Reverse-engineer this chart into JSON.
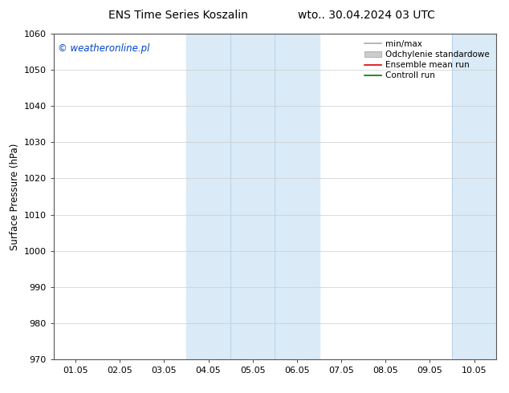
{
  "title_left": "ENS Time Series Koszalin",
  "title_right": "wto.. 30.04.2024 03 UTC",
  "ylabel": "Surface Pressure (hPa)",
  "ylim": [
    970,
    1060
  ],
  "ytick_step": 10,
  "xtick_labels": [
    "01.05",
    "02.05",
    "03.05",
    "04.05",
    "05.05",
    "06.05",
    "07.05",
    "08.05",
    "09.05",
    "10.05"
  ],
  "shaded_bands": [
    {
      "start": "2024-05-04",
      "end": "2024-05-06"
    },
    {
      "start": "2024-05-09",
      "end": "2024-05-10"
    }
  ],
  "band_color": "#daeaf7",
  "band_color2": "#e8f3fb",
  "watermark": "© weatheronline.pl",
  "watermark_color": "#0044cc",
  "legend_items": [
    {
      "label": "min/max",
      "color": "#aaaaaa",
      "lw": 1.2,
      "type": "line"
    },
    {
      "label": "Odchylenie standardowe",
      "color": "#cccccc",
      "type": "fill"
    },
    {
      "label": "Ensemble mean run",
      "color": "#dd0000",
      "lw": 1.2,
      "type": "line"
    },
    {
      "label": "Controll run",
      "color": "#007700",
      "lw": 1.2,
      "type": "line"
    }
  ],
  "bg_color": "#ffffff",
  "plot_bg_color": "#ffffff",
  "grid_color": "#cccccc",
  "title_fontsize": 10,
  "tick_fontsize": 8,
  "label_fontsize": 8.5,
  "watermark_fontsize": 8.5,
  "legend_fontsize": 7.5
}
